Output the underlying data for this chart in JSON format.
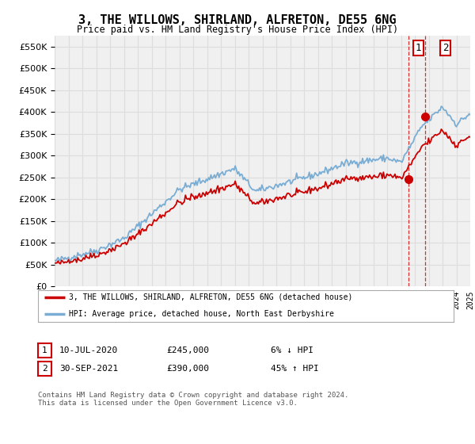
{
  "title": "3, THE WILLOWS, SHIRLAND, ALFRETON, DE55 6NG",
  "subtitle": "Price paid vs. HM Land Registry's House Price Index (HPI)",
  "legend_line1": "3, THE WILLOWS, SHIRLAND, ALFRETON, DE55 6NG (detached house)",
  "legend_line2": "HPI: Average price, detached house, North East Derbyshire",
  "annotation1_date": "10-JUL-2020",
  "annotation1_price": "£245,000",
  "annotation1_hpi": "6% ↓ HPI",
  "annotation2_date": "30-SEP-2021",
  "annotation2_price": "£390,000",
  "annotation2_hpi": "45% ↑ HPI",
  "footer": "Contains HM Land Registry data © Crown copyright and database right 2024.\nThis data is licensed under the Open Government Licence v3.0.",
  "x_start_year": 1995,
  "x_end_year": 2025,
  "ylim": [
    0,
    575000
  ],
  "yticks": [
    0,
    50000,
    100000,
    150000,
    200000,
    250000,
    300000,
    350000,
    400000,
    450000,
    500000,
    550000
  ],
  "sale1_year": 2020.53,
  "sale1_price": 245000,
  "sale2_year": 2021.75,
  "sale2_price": 390000,
  "red_color": "#cc0000",
  "blue_color": "#7aadd4",
  "grid_color": "#dddddd",
  "background_color": "#ffffff",
  "plot_bg_color": "#f0f0f0"
}
